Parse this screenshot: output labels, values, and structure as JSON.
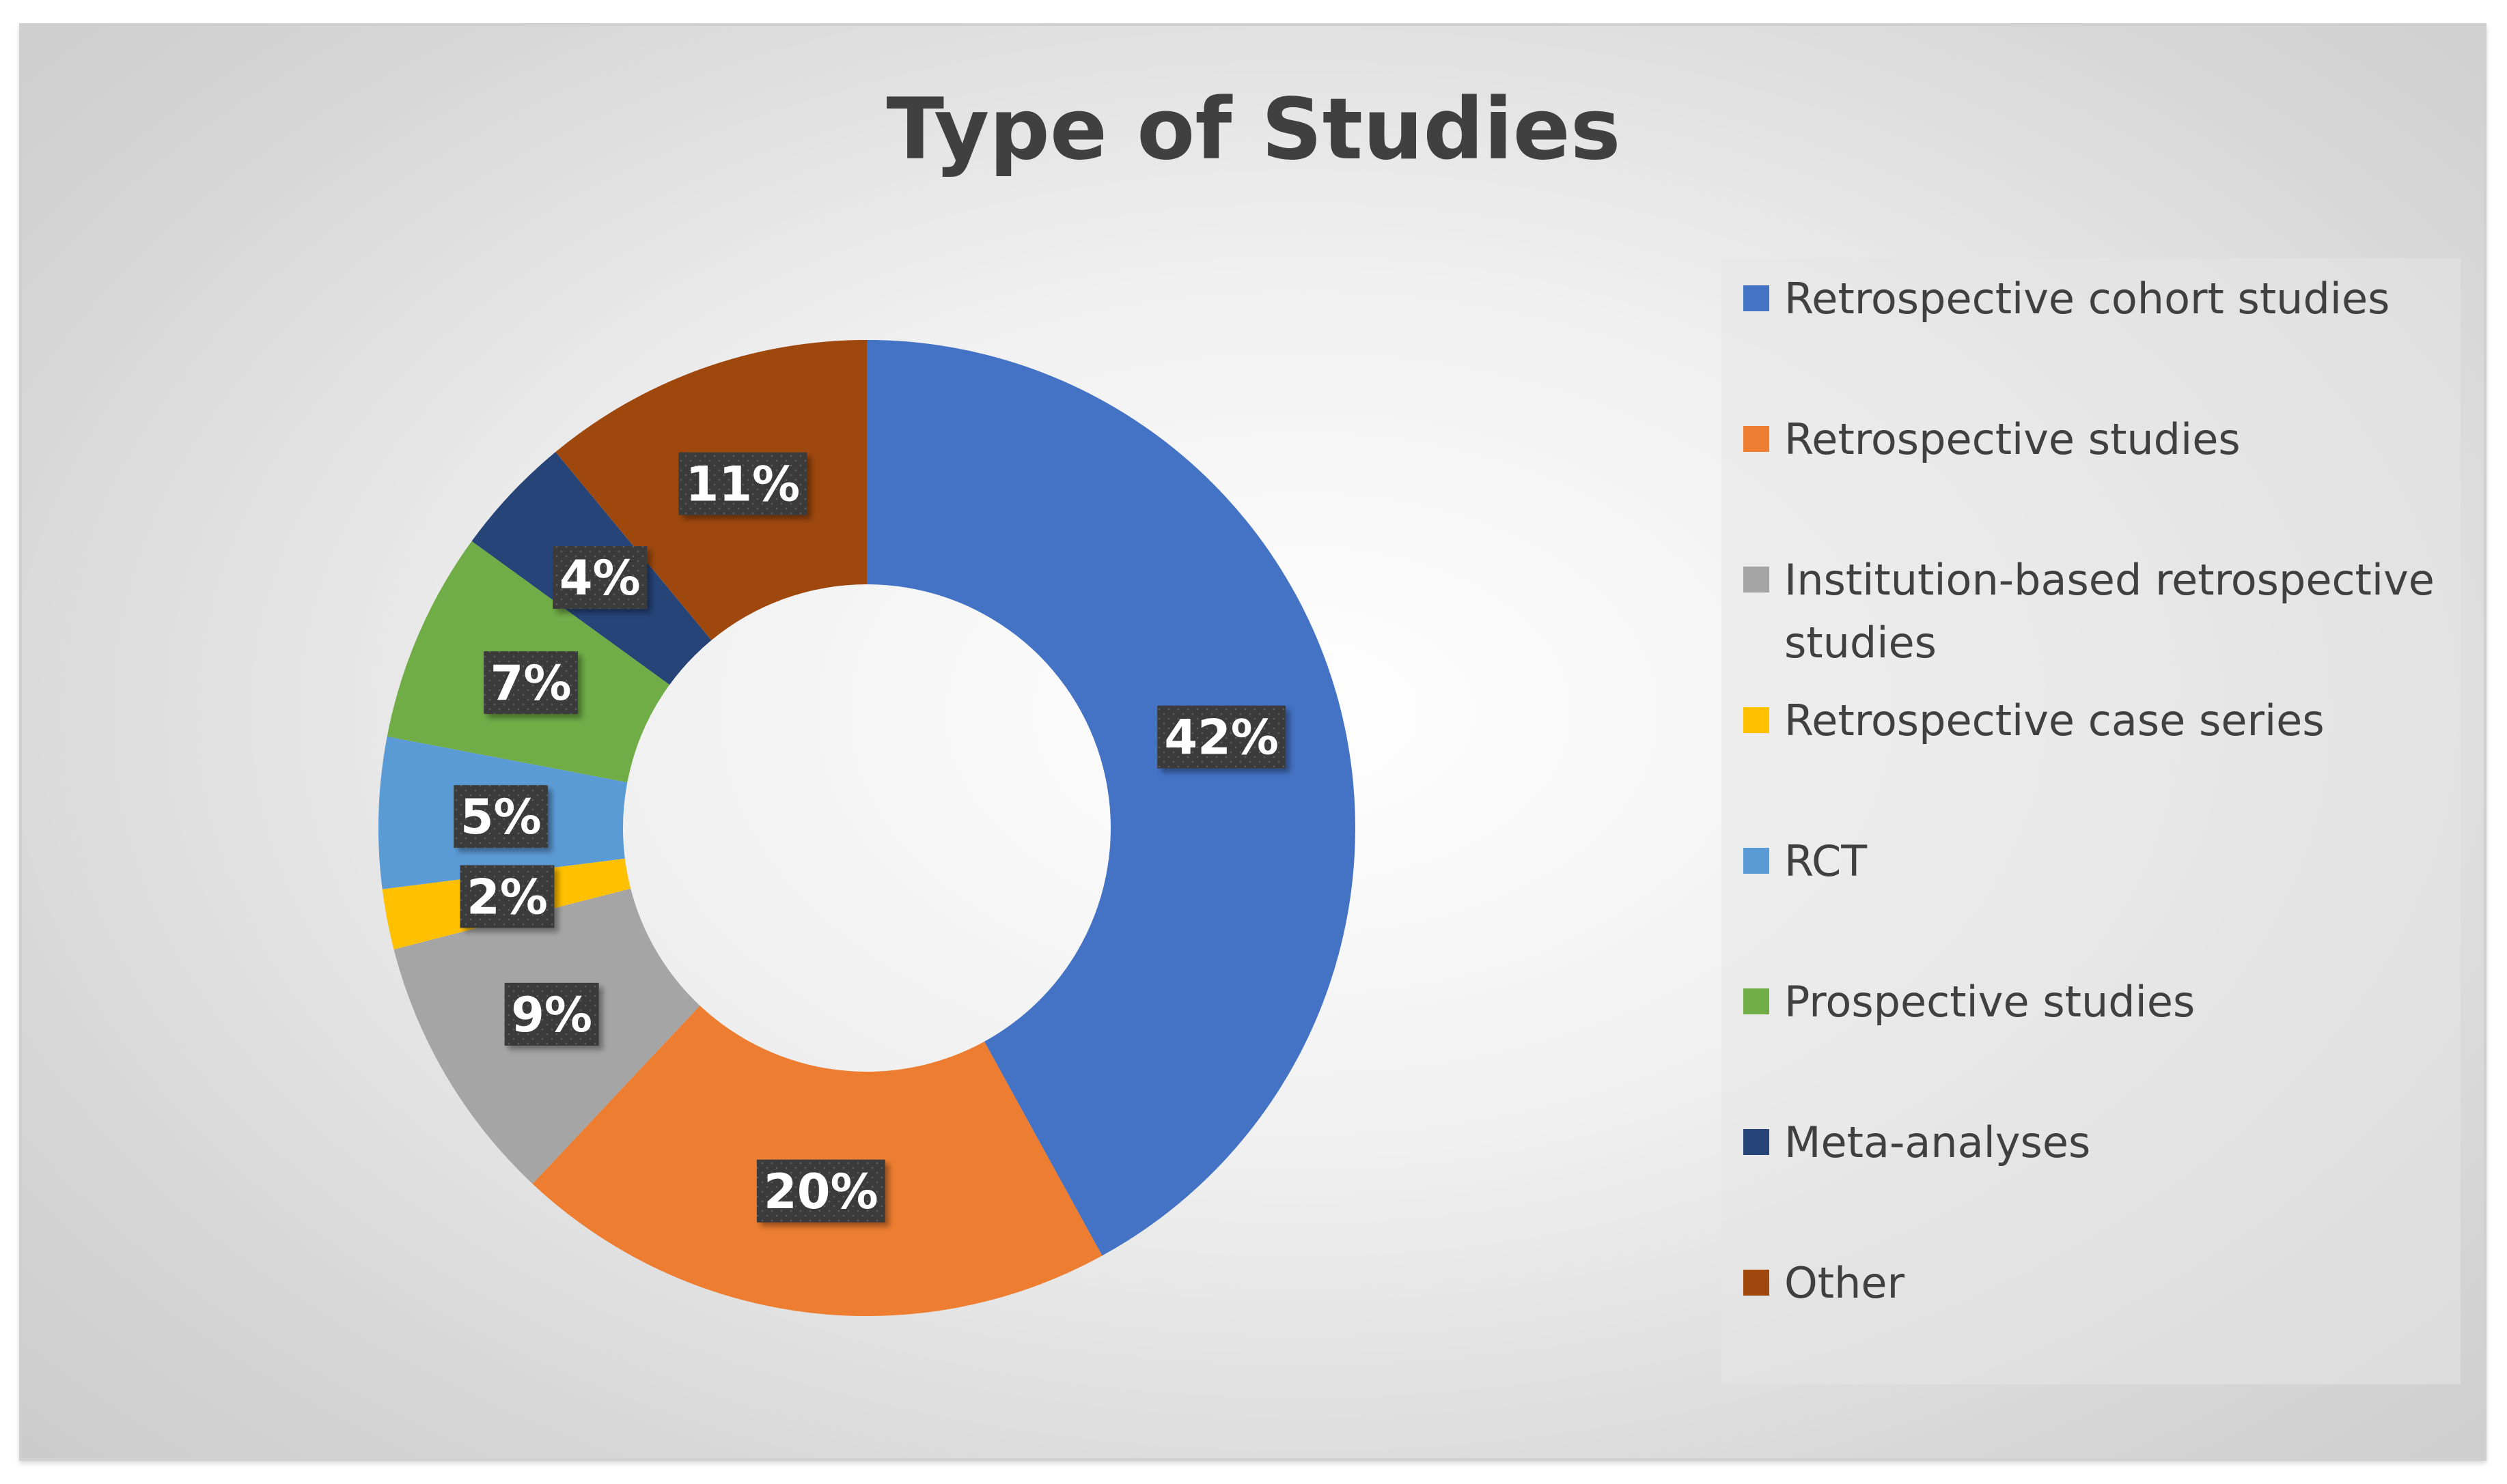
{
  "chart_data": {
    "type": "pie",
    "variant": "doughnut",
    "title": "Type of Studies",
    "categories": [
      "Retrospective cohort studies",
      "Retrospective studies",
      "Institution-based retrospective studies",
      "Retrospective case series",
      "RCT",
      "Prospective studies",
      "Meta-analyses",
      "Other"
    ],
    "values": [
      42,
      20,
      9,
      2,
      5,
      7,
      4,
      11
    ],
    "labels": [
      "42%",
      "20%",
      "9%",
      "2%",
      "5%",
      "7%",
      "4%",
      "11%"
    ],
    "colors": [
      "#4472C4",
      "#ED7D31",
      "#A5A5A5",
      "#FFC000",
      "#5B9BD5",
      "#70AD47",
      "#264478",
      "#9E480E"
    ],
    "legend_placement": "right",
    "grid": false
  }
}
